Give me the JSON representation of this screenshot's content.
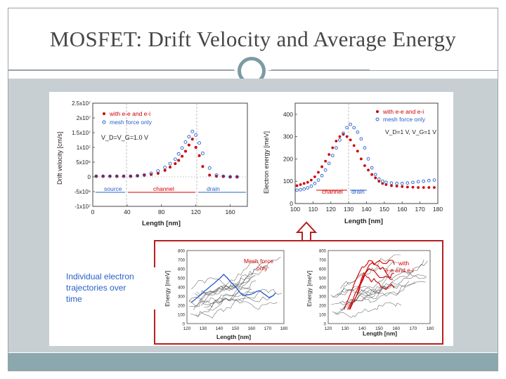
{
  "slide": {
    "title": "MOSFET: Drift Velocity and Average Energy",
    "colors": {
      "accent": "#8ba8ae",
      "red": "#d00000",
      "blue": "#2a60c8",
      "border_red": "#b52020"
    }
  },
  "chart_data": [
    {
      "type": "scatter",
      "ylabel": "Drift velocity  [cm/s]",
      "xlabel": "Length  [nm]",
      "x_ticks": [
        "0",
        "40",
        "80",
        "120",
        "160"
      ],
      "y_ticks": [
        "2.5x10⁷",
        "2x10⁷",
        "1.5x10⁷",
        "1x10⁷",
        "5x10⁶",
        "0",
        "-5x10⁶",
        "-1x10⁷"
      ],
      "legend": [
        "with e-e and e-i",
        "mesh force only"
      ],
      "annotation": "V_D=V_G=1.0 V",
      "regions": [
        "source",
        "channel",
        "drain"
      ],
      "series": [
        {
          "name": "with e-e and e-i",
          "color": "#d00000",
          "marker": "filled",
          "x": [
            4,
            12,
            20,
            28,
            36,
            44,
            52,
            60,
            68,
            76,
            84,
            90,
            96,
            100,
            104,
            108,
            112,
            116,
            120,
            124,
            128,
            136,
            144,
            152,
            160,
            168
          ],
          "y": [
            0.3,
            0.3,
            0.3,
            0.3,
            0.3,
            0.3,
            0.3,
            0.5,
            0.8,
            1.2,
            2.2,
            3.3,
            4.5,
            5.6,
            7.0,
            8.7,
            10.8,
            12.8,
            10.0,
            7.2,
            3.5,
            0.6,
            0.2,
            0.1,
            0.1,
            0.1
          ]
        },
        {
          "name": "mesh force only",
          "color": "#2a60c8",
          "marker": "open",
          "x": [
            4,
            12,
            20,
            28,
            36,
            44,
            52,
            60,
            68,
            76,
            84,
            90,
            96,
            100,
            104,
            108,
            112,
            116,
            120,
            124,
            128,
            136,
            144,
            152,
            160,
            168
          ],
          "y": [
            0.2,
            0.2,
            0.2,
            0.2,
            0.2,
            0.2,
            0.4,
            0.7,
            1.2,
            2.0,
            3.2,
            4.5,
            6.0,
            7.8,
            9.8,
            11.8,
            13.6,
            15.4,
            14.2,
            11.5,
            8.0,
            3.0,
            0.6,
            0.2,
            0.0,
            0.0
          ]
        }
      ],
      "xlim": [
        0,
        180
      ],
      "ylim": [
        -10000000,
        25000000
      ]
    },
    {
      "type": "scatter",
      "ylabel": "Electron energy  [meV]",
      "xlabel": "Length  [nm]",
      "x_ticks": [
        "100",
        "110",
        "120",
        "130",
        "140",
        "150",
        "160",
        "170",
        "180"
      ],
      "y_ticks": [
        "0",
        "100",
        "200",
        "300",
        "400"
      ],
      "legend": [
        "with e-e and e-i",
        "mesh force only"
      ],
      "annotation": "V_D=1 V,  V_G=1 V",
      "regions": [
        "channel",
        "drain"
      ],
      "series": [
        {
          "name": "with e-e and e-i",
          "color": "#d00000",
          "marker": "filled",
          "x": [
            101,
            103,
            105,
            107,
            109,
            111,
            113,
            115,
            117,
            119,
            121,
            123,
            125,
            127,
            129,
            131,
            133,
            135,
            137,
            139,
            141,
            143,
            145,
            147,
            149,
            151,
            154,
            157,
            160,
            163,
            166,
            169,
            172,
            175,
            178
          ],
          "y": [
            80,
            85,
            90,
            95,
            105,
            120,
            140,
            165,
            190,
            220,
            250,
            280,
            300,
            310,
            300,
            285,
            260,
            235,
            200,
            170,
            150,
            130,
            115,
            100,
            90,
            85,
            80,
            78,
            76,
            74,
            73,
            72,
            72,
            72,
            72
          ]
        },
        {
          "name": "mesh force only",
          "color": "#2a60c8",
          "marker": "open",
          "x": [
            101,
            103,
            105,
            107,
            109,
            111,
            113,
            115,
            117,
            119,
            121,
            123,
            125,
            127,
            129,
            131,
            133,
            135,
            137,
            139,
            141,
            143,
            145,
            147,
            149,
            151,
            154,
            157,
            160,
            163,
            166,
            169,
            172,
            175,
            178
          ],
          "y": [
            60,
            62,
            65,
            70,
            78,
            90,
            105,
            125,
            150,
            180,
            215,
            250,
            285,
            315,
            340,
            355,
            340,
            320,
            290,
            250,
            200,
            160,
            130,
            110,
            100,
            95,
            92,
            90,
            90,
            92,
            95,
            98,
            100,
            103,
            105
          ]
        }
      ],
      "xlim": [
        100,
        180
      ],
      "ylim": [
        0,
        450
      ]
    }
  ],
  "inset": {
    "callout": "Individual electron trajectories over time",
    "left_plot": {
      "ylabel": "Energy  [meV]",
      "xlabel": "Length  [nm]",
      "label": "Mesh force only",
      "x_ticks": [
        "120",
        "130",
        "140",
        "150",
        "160",
        "170",
        "180"
      ],
      "y_ticks": [
        "800",
        "700",
        "600",
        "500",
        "400",
        "300",
        "200",
        "100",
        "0"
      ]
    },
    "right_plot": {
      "ylabel": "Energy  [meV]",
      "xlabel": "Length  [nm]",
      "label": "with e-e and e-i",
      "x_ticks": [
        "120",
        "130",
        "140",
        "150",
        "160",
        "170",
        "180"
      ],
      "y_ticks": [
        "800",
        "700",
        "600",
        "500",
        "400",
        "300",
        "200",
        "100",
        "0"
      ]
    }
  }
}
